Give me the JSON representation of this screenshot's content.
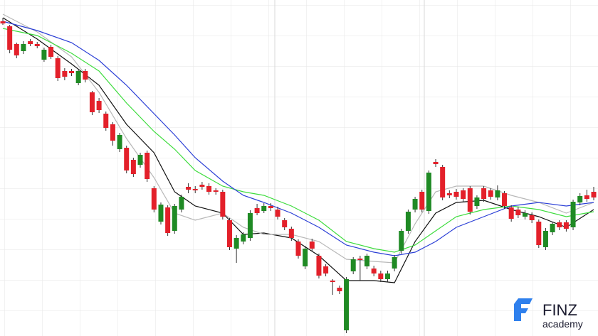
{
  "chart_data": {
    "type": "candlestick",
    "ylim": [
      0,
      473
    ],
    "up_color": "#1f8a24",
    "down_color": "#e3202a",
    "open": [
      443,
      436,
      411,
      401,
      415,
      411,
      389,
      407,
      391,
      373,
      373,
      356,
      373,
      343,
      331,
      313,
      298,
      263,
      265,
      248,
      241,
      258,
      208,
      161,
      181,
      148,
      178,
      210,
      207,
      213,
      211,
      205,
      203,
      163,
      123,
      133,
      138,
      180,
      176,
      183,
      178,
      163,
      151,
      133,
      98,
      133,
      113,
      98,
      78,
      68,
      8,
      91,
      109,
      98,
      95,
      88,
      80,
      95,
      120,
      148,
      178,
      203,
      176,
      245,
      238,
      201,
      203,
      205,
      208,
      183,
      208,
      205,
      195,
      201,
      181,
      178,
      168,
      170,
      161,
      125,
      146,
      160,
      160,
      153,
      188,
      198,
      203
    ],
    "high": [
      448,
      438,
      413,
      415,
      418,
      414,
      406,
      410,
      394,
      377,
      376,
      376,
      376,
      345,
      335,
      316,
      301,
      286,
      268,
      251,
      258,
      261,
      211,
      188,
      184,
      186,
      199,
      215,
      211,
      217,
      215,
      208,
      206,
      166,
      142,
      146,
      177,
      186,
      187,
      187,
      182,
      166,
      154,
      136,
      127,
      137,
      116,
      101,
      80,
      71,
      83,
      111,
      113,
      116,
      99,
      92,
      92,
      114,
      151,
      178,
      196,
      206,
      233,
      249,
      241,
      205,
      207,
      208,
      211,
      198,
      211,
      208,
      212,
      204,
      184,
      182,
      177,
      174,
      164,
      152,
      161,
      163,
      163,
      192,
      201,
      206,
      210
    ],
    "low": [
      438,
      398,
      391,
      397,
      408,
      405,
      386,
      390,
      359,
      360,
      366,
      353,
      357,
      311,
      314,
      289,
      268,
      259,
      229,
      224,
      237,
      217,
      174,
      157,
      141,
      144,
      174,
      201,
      201,
      206,
      199,
      199,
      164,
      121,
      103,
      129,
      134,
      170,
      173,
      176,
      164,
      149,
      134,
      109,
      94,
      119,
      81,
      84,
      58,
      59,
      4,
      87,
      78,
      94,
      84,
      76,
      76,
      91,
      116,
      144,
      174,
      174,
      172,
      238,
      191,
      194,
      192,
      189,
      171,
      179,
      189,
      192,
      191,
      179,
      161,
      166,
      164,
      159,
      124,
      121,
      142,
      149,
      147,
      149,
      184,
      189,
      191
    ],
    "close": [
      440,
      403,
      395,
      411,
      411,
      408,
      403,
      393,
      363,
      365,
      370,
      373,
      361,
      315,
      318,
      293,
      275,
      283,
      233,
      228,
      255,
      221,
      178,
      185,
      145,
      183,
      196,
      206,
      205,
      210,
      203,
      203,
      168,
      125,
      138,
      143,
      173,
      173,
      183,
      180,
      168,
      153,
      138,
      113,
      123,
      123,
      85,
      88,
      76,
      63,
      80,
      108,
      107,
      113,
      88,
      80,
      88,
      111,
      148,
      175,
      193,
      178,
      230,
      242,
      195,
      198,
      196,
      193,
      175,
      195,
      193,
      196,
      205,
      183,
      165,
      170,
      173,
      163,
      128,
      148,
      158,
      153,
      151,
      189,
      197,
      193,
      195
    ],
    "overlays": [
      {
        "color": "#111111",
        "x": [
          0,
          5,
          10,
          14,
          18,
          22,
          25,
          28,
          32,
          35,
          38,
          42,
          46,
          50,
          54,
          57,
          60,
          63,
          66,
          70,
          74,
          78,
          82,
          86
        ],
        "values": [
          448,
          418,
          383,
          353,
          298,
          258,
          203,
          183,
          173,
          143,
          145,
          138,
          113,
          78,
          78,
          75,
          133,
          173,
          188,
          191,
          178,
          168,
          153,
          178
        ]
      },
      {
        "color": "#b8b8b8",
        "x": [
          0,
          5,
          10,
          14,
          18,
          22,
          25,
          28,
          32,
          35,
          38,
          42,
          46,
          50,
          54,
          57,
          60,
          63,
          66,
          70,
          74,
          78,
          82,
          86
        ],
        "values": [
          453,
          428,
          393,
          343,
          278,
          223,
          173,
          163,
          173,
          153,
          143,
          143,
          133,
          108,
          105,
          103,
          158,
          203,
          211,
          211,
          198,
          188,
          173,
          188
        ]
      },
      {
        "color": "#3ddc3d",
        "x": [
          0,
          5,
          10,
          14,
          18,
          22,
          25,
          28,
          32,
          35,
          38,
          42,
          46,
          50,
          54,
          57,
          60,
          63,
          66,
          70,
          74,
          78,
          82,
          86
        ],
        "values": [
          433,
          423,
          398,
          373,
          328,
          288,
          263,
          233,
          211,
          203,
          198,
          183,
          163,
          133,
          123,
          118,
          128,
          148,
          168,
          178,
          183,
          178,
          168,
          175
        ]
      },
      {
        "color": "#2b3fd6",
        "x": [
          0,
          5,
          10,
          14,
          18,
          22,
          25,
          28,
          32,
          35,
          38,
          42,
          46,
          50,
          54,
          57,
          60,
          63,
          66,
          70,
          74,
          78,
          82,
          86
        ],
        "values": [
          443,
          430,
          413,
          388,
          353,
          313,
          283,
          251,
          218,
          198,
          188,
          173,
          153,
          128,
          118,
          113,
          118,
          133,
          153,
          168,
          183,
          188,
          183,
          188
        ]
      }
    ]
  },
  "logo": {
    "name": "FINZ",
    "tagline": "academy"
  }
}
